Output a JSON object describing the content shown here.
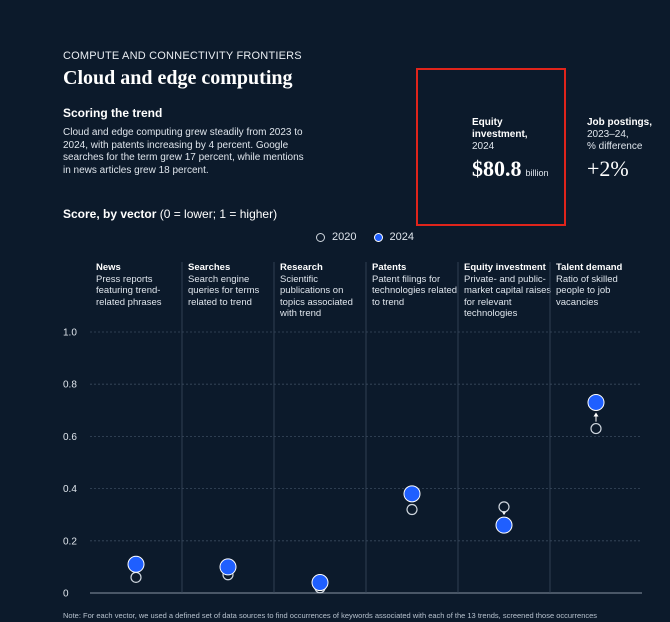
{
  "header": {
    "eyebrow": "COMPUTE AND CONNECTIVITY FRONTIERS",
    "title": "Cloud and edge computing",
    "subhead": "Scoring the trend",
    "body": "Cloud and edge computing grew steadily from 2023 to 2024, with patents increasing by 4 percent. Google searches for the term grew 17 percent, while mentions in news articles grew 18 percent."
  },
  "equity": {
    "label": "Equity investment,",
    "year": "2024",
    "value": "$80.8",
    "unit": "billion",
    "highlight_color": "#e0241b"
  },
  "job_postings": {
    "label": "Job postings,",
    "sub1": "2023–24,",
    "sub2": "% difference",
    "value": "+2%"
  },
  "score": {
    "title_bold": "Score, by vector",
    "title_rest": " (0 = lower; 1 = higher)"
  },
  "chart_data": {
    "type": "scatter",
    "categories": [
      "News",
      "Searches",
      "Research",
      "Patents",
      "Equity investment",
      "Talent demand"
    ],
    "descriptions": [
      "Press reports featuring trend-related phrases",
      "Search engine queries for terms related to trend",
      "Scientific publications on topics associated with trend",
      "Patent filings for technologies related to trend",
      "Private- and public-market capital raises for relevant technologies",
      "Ratio of skilled people to job vacancies"
    ],
    "series": [
      {
        "name": "2020",
        "values": [
          0.06,
          0.07,
          0.02,
          0.32,
          0.33,
          0.63
        ],
        "color": "#cfd6de"
      },
      {
        "name": "2024",
        "values": [
          0.11,
          0.1,
          0.04,
          0.38,
          0.26,
          0.73
        ],
        "color": "#1f5fff"
      }
    ],
    "ylim": [
      0,
      1
    ],
    "yticks": [
      "0",
      "0.2",
      "0.4",
      "0.6",
      "0.8",
      "1.0"
    ],
    "grid": true,
    "legend": "top-center"
  },
  "note": "Note: For each vector, we used a defined set of data sources to find occurrences of keywords associated with each of the 13 trends, screened those occurrences"
}
